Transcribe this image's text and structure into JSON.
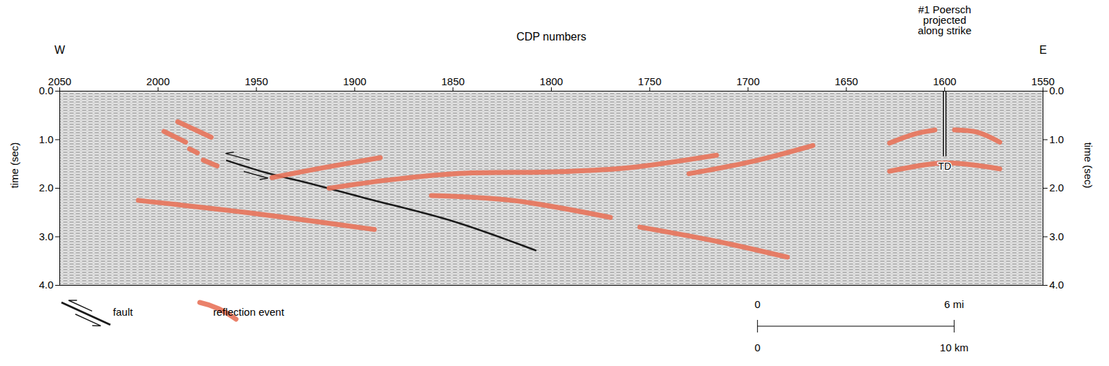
{
  "chart_data": {
    "type": "line",
    "x_label": "CDP numbers",
    "y_label": "time (sec)",
    "annotations": {
      "west": "W",
      "east": "E"
    },
    "xlim": [
      2050,
      1550
    ],
    "ylim": [
      0,
      4
    ],
    "xticks": [
      2050,
      2000,
      1950,
      1900,
      1850,
      1800,
      1750,
      1700,
      1650,
      1600,
      1550
    ],
    "yticks": [
      {
        "value": 0,
        "label": "0.0"
      },
      {
        "value": 1,
        "label": "1.0"
      },
      {
        "value": 2,
        "label": "2.0"
      },
      {
        "value": 3,
        "label": "3.0"
      },
      {
        "value": 4,
        "label": "4.0"
      }
    ],
    "grid": false,
    "series": [
      {
        "name": "fault",
        "color": "#1a1a1a",
        "line_style": "solid",
        "segments": [
          {
            "x": [
              1965,
              1945,
              1920,
              1895,
              1850,
              1808
            ],
            "y": [
              1.43,
              1.68,
              1.93,
              2.2,
              2.68,
              3.28
            ]
          }
        ]
      },
      {
        "name": "reflection event",
        "color": "#e8735a",
        "line_style": "thick",
        "segments": [
          {
            "x": [
              1990,
              1983,
              1973
            ],
            "y": [
              0.63,
              0.76,
              0.95
            ]
          },
          {
            "x": [
              1997,
              1986
            ],
            "y": [
              0.83,
              1.05
            ]
          },
          {
            "x": [
              1984,
              1980
            ],
            "y": [
              1.19,
              1.27
            ]
          },
          {
            "x": [
              1977,
              1970
            ],
            "y": [
              1.42,
              1.54
            ]
          },
          {
            "x": [
              1942,
              1915,
              1887
            ],
            "y": [
              1.78,
              1.57,
              1.37
            ]
          },
          {
            "x": [
              1913,
              1885,
              1849,
              1796,
              1761,
              1716
            ],
            "y": [
              2.0,
              1.84,
              1.7,
              1.66,
              1.58,
              1.32
            ]
          },
          {
            "x": [
              1730,
              1697,
              1667
            ],
            "y": [
              1.7,
              1.44,
              1.12
            ]
          },
          {
            "x": [
              1861,
              1820,
              1770
            ],
            "y": [
              2.15,
              2.25,
              2.6
            ]
          },
          {
            "x": [
              1755,
              1715,
              1680
            ],
            "y": [
              2.8,
              3.1,
              3.42
            ]
          },
          {
            "x": [
              2010,
              1955,
              1890
            ],
            "y": [
              2.25,
              2.5,
              2.85
            ]
          },
          {
            "x": [
              1628,
              1615,
              1605
            ],
            "y": [
              1.07,
              0.88,
              0.8
            ]
          },
          {
            "x": [
              1595,
              1583,
              1572
            ],
            "y": [
              0.8,
              0.85,
              1.05
            ]
          },
          {
            "x": [
              1628,
              1600,
              1572
            ],
            "y": [
              1.65,
              1.48,
              1.6
            ]
          }
        ]
      }
    ],
    "well": {
      "label": "#1 Poersch\nprojected\nalong strike",
      "x": 1600,
      "td": 1.35,
      "td_label": "TD"
    },
    "scale_bar": {
      "x": [
        1695,
        1595
      ],
      "top_labels": [
        "0",
        "6 mi"
      ],
      "bottom_labels": [
        "0",
        "10 km"
      ]
    }
  }
}
